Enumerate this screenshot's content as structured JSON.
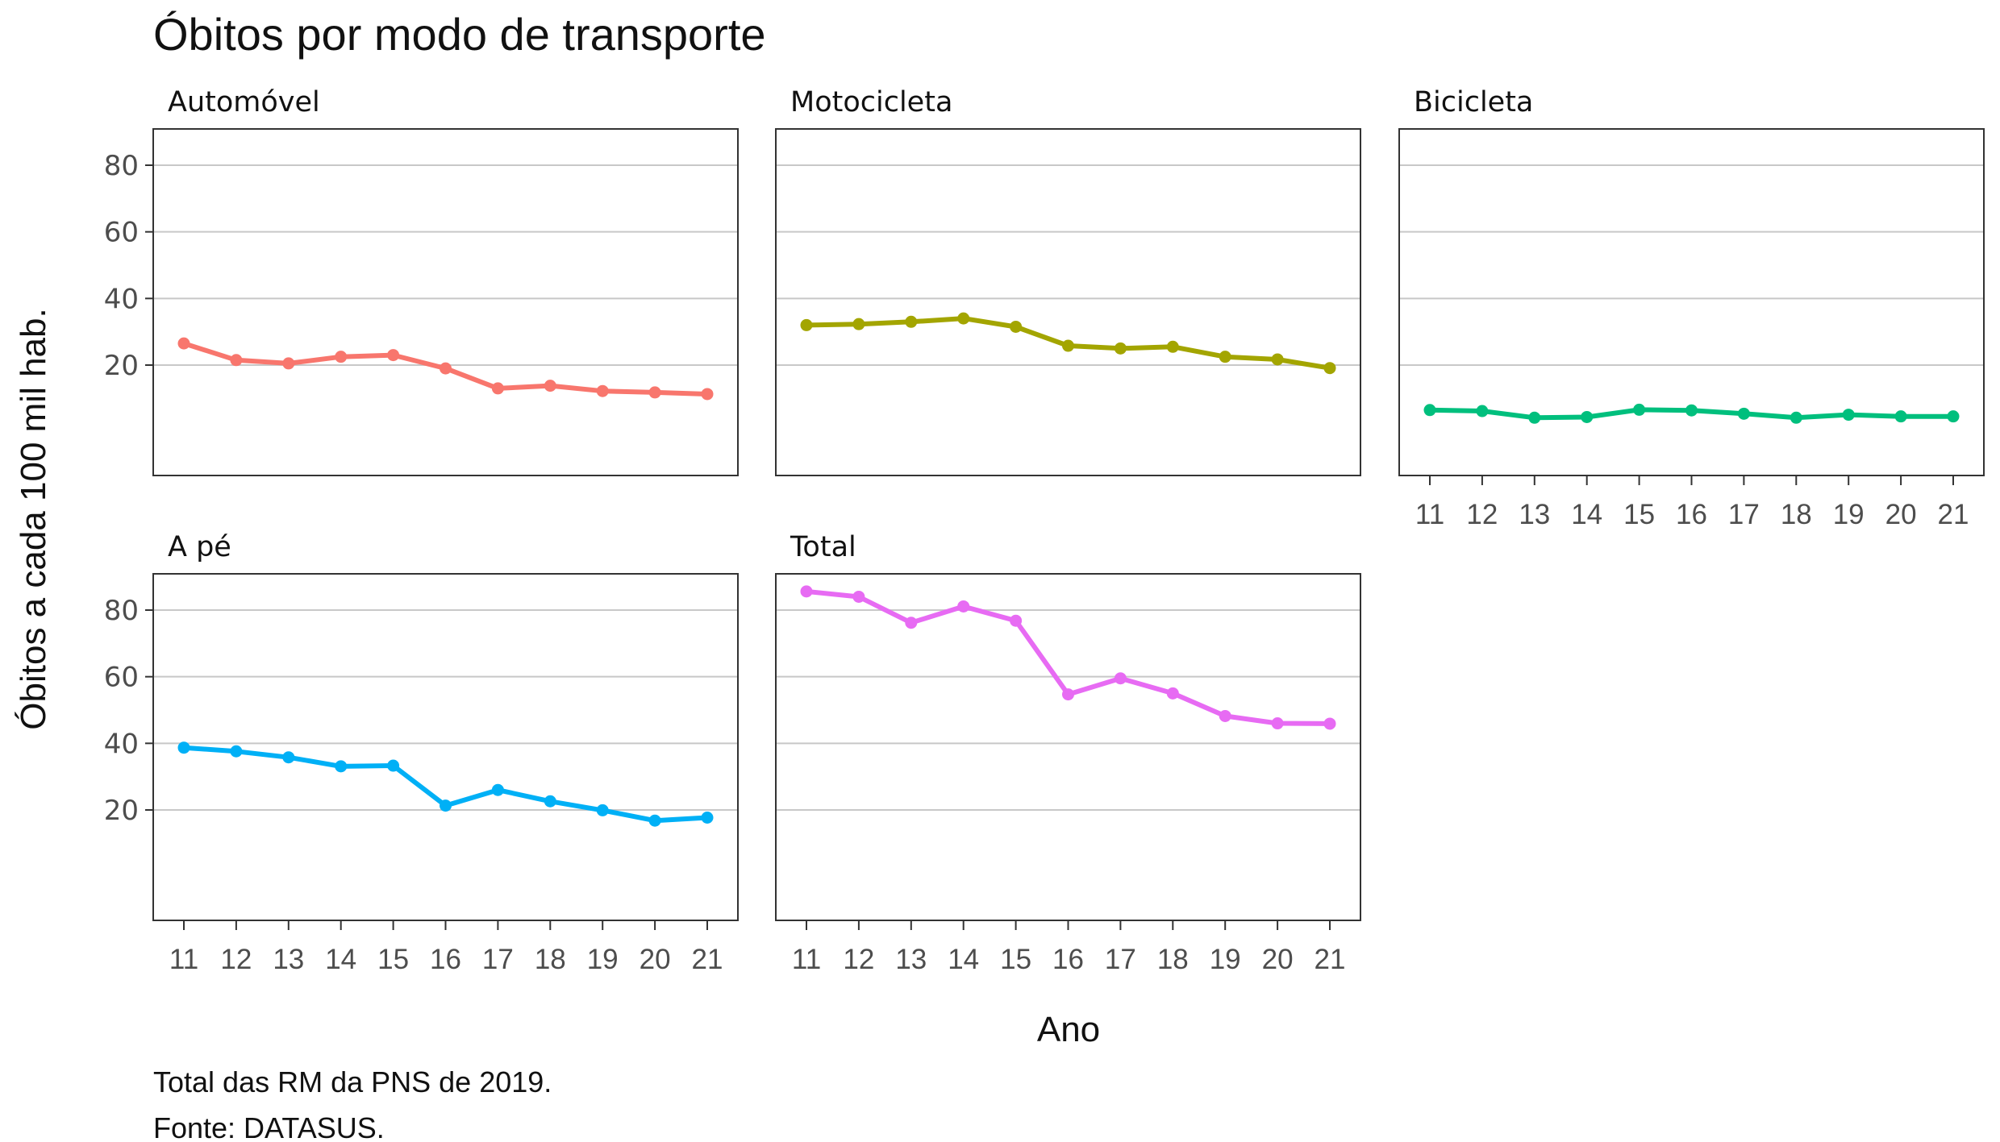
{
  "chart_data": {
    "type": "line",
    "title": "Óbitos por modo de transporte",
    "xlabel": "Ano",
    "ylabel": "Óbitos a cada 100 mil hab.",
    "ylim": [
      0,
      90
    ],
    "yticks": [
      20,
      40,
      60,
      80
    ],
    "categories": [
      "11",
      "12",
      "13",
      "14",
      "15",
      "16",
      "17",
      "18",
      "19",
      "20",
      "21"
    ],
    "grid": true,
    "legend": "none",
    "caption": [
      "Total das RM da PNS de 2019.",
      "Fonte: DATASUS."
    ],
    "series": [
      {
        "name": "Automóvel",
        "color": "#F8766D",
        "values": [
          26.5,
          21.5,
          20.5,
          22.5,
          23,
          19,
          13,
          13.8,
          12.2,
          11.8,
          11.3
        ]
      },
      {
        "name": "Motocicleta",
        "color": "#A3A500",
        "values": [
          32,
          32.3,
          33,
          34,
          31.5,
          25.8,
          25,
          25.5,
          22.5,
          21.7,
          19.1
        ]
      },
      {
        "name": "Bicicleta",
        "color": "#00BF7D",
        "values": [
          6.5,
          6.2,
          4.2,
          4.4,
          6.6,
          6.4,
          5.4,
          4.2,
          5.1,
          4.6,
          4.6
        ]
      },
      {
        "name": "A pé",
        "color": "#00B0F6",
        "values": [
          38.7,
          37.6,
          35.8,
          33.1,
          33.3,
          21.3,
          26,
          22.6,
          19.9,
          16.8,
          17.7
        ]
      },
      {
        "name": "Total",
        "color": "#E76BF3",
        "values": [
          85.6,
          84,
          76.2,
          81.1,
          76.8,
          54.7,
          59.5,
          55,
          48.2,
          46,
          45.9
        ]
      }
    ]
  }
}
